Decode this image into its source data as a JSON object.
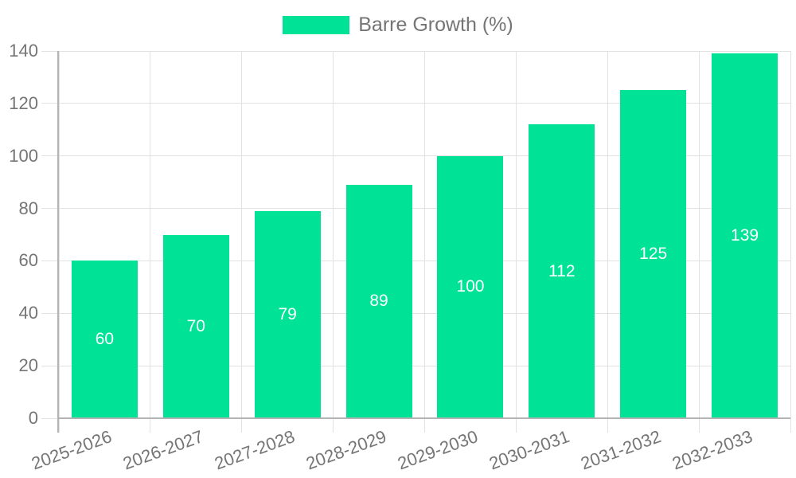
{
  "chart_data": {
    "type": "bar",
    "title": "",
    "categories": [
      "2025-2026",
      "2026-2027",
      "2027-2028",
      "2028-2029",
      "2029-2030",
      "2030-2031",
      "2031-2032",
      "2032-2033"
    ],
    "series": [
      {
        "name": "Barre Growth (%)",
        "values": [
          60,
          70,
          79,
          89,
          100,
          112,
          125,
          139
        ]
      }
    ],
    "xlabel": "",
    "ylabel": "",
    "ylim": [
      0,
      140
    ],
    "yticks": [
      0,
      20,
      40,
      60,
      80,
      100,
      120,
      140
    ],
    "grid": true,
    "legend_position": "top-center",
    "value_labels": "inside-center",
    "colors": {
      "bar": "#00E396",
      "value_label": "#ffffff",
      "axis_text": "#757575",
      "grid_line": "#e2e2e2",
      "axis_line": "#b3b3b3"
    }
  }
}
